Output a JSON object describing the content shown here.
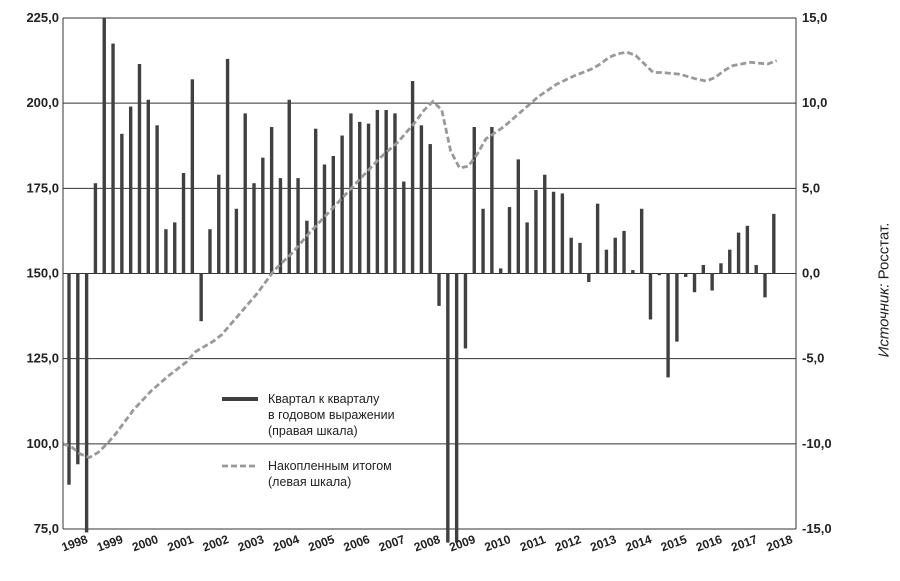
{
  "chart_data": {
    "type": "bar+line",
    "y_left": {
      "ticks": [
        "75,0",
        "100,0",
        "125,0",
        "150,0",
        "175,0",
        "200,0",
        "225,0"
      ],
      "range": [
        75,
        225
      ]
    },
    "y_right": {
      "ticks": [
        "-15,0",
        "-10,0",
        "-5,0",
        "0,0",
        "5,0",
        "10,0",
        "15,0"
      ],
      "range": [
        -15,
        15
      ]
    },
    "x_labels": [
      "1998",
      "1999",
      "2000",
      "2001",
      "2002",
      "2003",
      "2004",
      "2005",
      "2006",
      "2007",
      "2008",
      "2009",
      "2010",
      "2011",
      "2012",
      "2013",
      "2014",
      "2015",
      "2016",
      "2017",
      "2018"
    ],
    "grid": true,
    "series": [
      {
        "name_lines": [
          "Квартал к кварталу",
          "в годовом выражении",
          "(правая шкала)"
        ],
        "type": "bar",
        "axis": "right",
        "color": "#404040",
        "values": [
          -12.4,
          -11.2,
          -15.2,
          5.3,
          15.0,
          13.5,
          8.2,
          9.8,
          12.3,
          10.2,
          8.7,
          2.6,
          3.0,
          5.9,
          11.4,
          -2.8,
          2.6,
          5.8,
          12.6,
          3.8,
          9.4,
          5.3,
          6.8,
          8.6,
          5.6,
          10.2,
          5.6,
          3.1,
          8.5,
          6.4,
          6.9,
          8.1,
          9.4,
          8.9,
          8.8,
          9.6,
          9.6,
          9.4,
          5.4,
          11.3,
          8.7,
          7.6,
          -1.9,
          -15.8,
          -15.8,
          -4.4,
          8.6,
          3.8,
          8.6,
          0.3,
          3.9,
          6.7,
          3.0,
          4.9,
          5.8,
          4.8,
          4.7,
          2.1,
          1.8,
          -0.5,
          4.1,
          1.4,
          2.1,
          2.5,
          0.2,
          3.8,
          -2.7,
          -0.1,
          -6.1,
          -4.0,
          -0.2,
          -1.1,
          0.5,
          -1.0,
          0.6,
          1.4,
          2.4,
          2.8,
          0.5,
          -1.4,
          3.5
        ]
      },
      {
        "name_lines": [
          "Накопленным итогом",
          "(левая шкала)"
        ],
        "type": "line",
        "axis": "left",
        "style": "dashed",
        "color": "#999999",
        "x": [
          1998.0,
          1998.25,
          1998.5,
          1998.75,
          1999.0,
          1999.25,
          1999.5,
          1999.75,
          2000.0,
          2000.5,
          2001.0,
          2001.5,
          2001.75,
          2002.0,
          2002.25,
          2002.5,
          2002.75,
          2003.0,
          2003.5,
          2004.0,
          2004.5,
          2005.0,
          2005.5,
          2006.0,
          2006.5,
          2007.0,
          2007.5,
          2008.0,
          2008.25,
          2008.5,
          2008.75,
          2009.0,
          2009.25,
          2009.5,
          2009.75,
          2010.0,
          2010.5,
          2011.0,
          2011.5,
          2012.0,
          2012.5,
          2013.0,
          2013.25,
          2013.5,
          2013.75,
          2014.0,
          2014.25,
          2014.5,
          2014.75,
          2015.0,
          2015.5,
          2016.0,
          2016.25,
          2016.5,
          2016.75,
          2017.0,
          2017.5,
          2018.0,
          2018.25
        ],
        "values": [
          100.0,
          99.0,
          97.0,
          96.0,
          97.5,
          100.0,
          103.0,
          106.5,
          110.0,
          115.5,
          120.0,
          124.0,
          127.0,
          128.5,
          130.0,
          132.0,
          135.0,
          138.0,
          144.0,
          151.0,
          156.0,
          162.0,
          167.5,
          173.0,
          178.5,
          184.0,
          188.5,
          194.5,
          198.0,
          200.5,
          198.0,
          186.0,
          181.0,
          181.5,
          185.0,
          189.5,
          193.0,
          197.5,
          202.0,
          205.5,
          208.0,
          210.0,
          211.5,
          213.5,
          214.5,
          215.0,
          214.0,
          211.5,
          209.0,
          209.0,
          208.5,
          207.0,
          206.5,
          207.5,
          209.5,
          211.0,
          212.0,
          211.5,
          212.5
        ]
      }
    ]
  },
  "source": {
    "label": "Источник:",
    "value": "Росстат."
  }
}
